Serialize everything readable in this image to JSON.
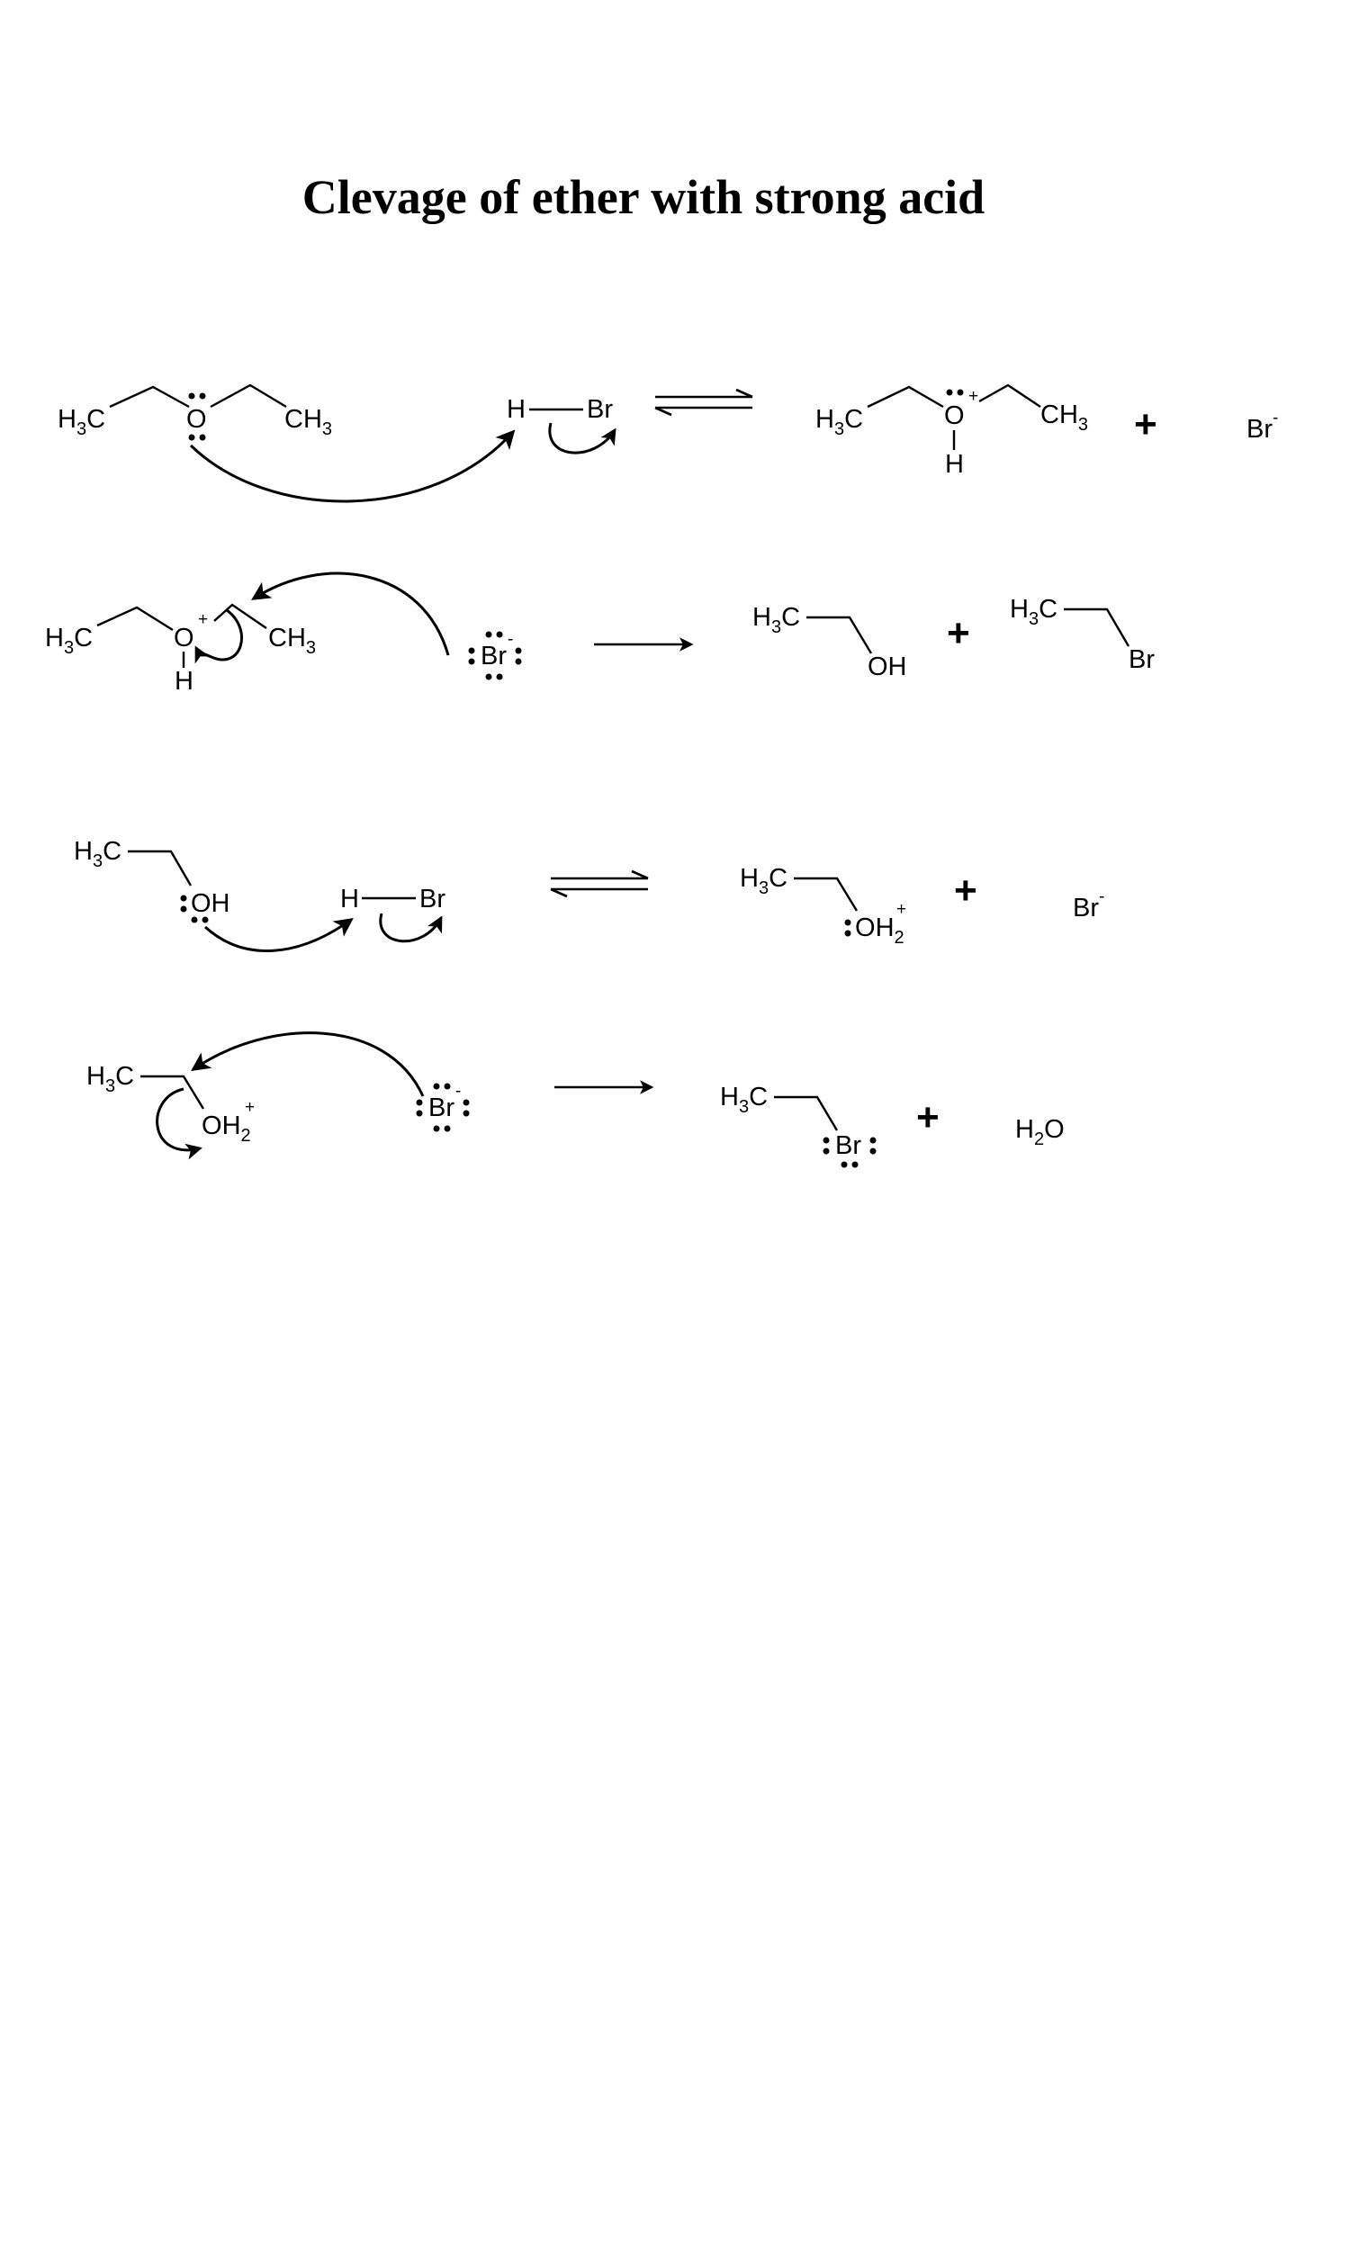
{
  "title": "Clevage of ether with strong acid",
  "atoms": {
    "h3c_main": "H",
    "h3c_3": "3",
    "h3c_C": "C",
    "ch3_C": "CH",
    "ch3_3": "3",
    "h2_H": "H",
    "h2_2": "2",
    "H": "H",
    "O": "O",
    "OH": "OH",
    "Br": "Br",
    "minus": "-",
    "plus": "+",
    "water_H": "H",
    "water_2": "2",
    "water_O": "O"
  },
  "reaction_plus": "+"
}
